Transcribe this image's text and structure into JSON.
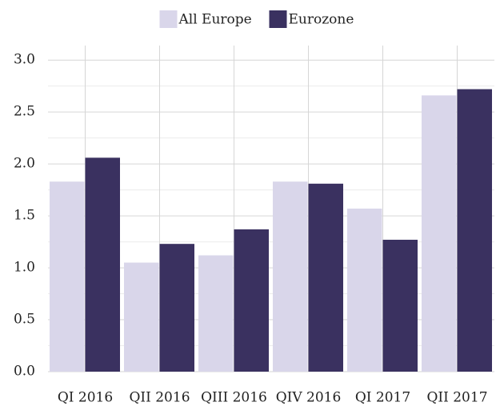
{
  "chart_data": {
    "type": "bar",
    "categories": [
      "QI 2016",
      "QII 2016",
      "QIII 2016",
      "QIV 2016",
      "QI 2017",
      "QII 2017"
    ],
    "series": [
      {
        "name": "All Europe",
        "color": "#d9d6ea",
        "values": [
          1.83,
          1.05,
          1.12,
          1.83,
          1.57,
          2.66
        ]
      },
      {
        "name": "Eurozone",
        "color": "#3a3160",
        "values": [
          2.06,
          1.23,
          1.37,
          1.81,
          1.27,
          2.72
        ]
      }
    ],
    "ylim": [
      0,
      3.14
    ],
    "yticks": [
      {
        "value": 0,
        "label": "0.0"
      },
      {
        "value": 0.5,
        "label": "0.5"
      },
      {
        "value": 1,
        "label": "1.0"
      },
      {
        "value": 1.5,
        "label": "1.5"
      },
      {
        "value": 2,
        "label": "2.0"
      },
      {
        "value": 2.5,
        "label": "2.5"
      },
      {
        "value": 3,
        "label": "3.0"
      }
    ],
    "minor_yticks": [
      0.25,
      0.75,
      1.25,
      1.75,
      2.25,
      2.75
    ],
    "grid": true,
    "legend": "top"
  }
}
